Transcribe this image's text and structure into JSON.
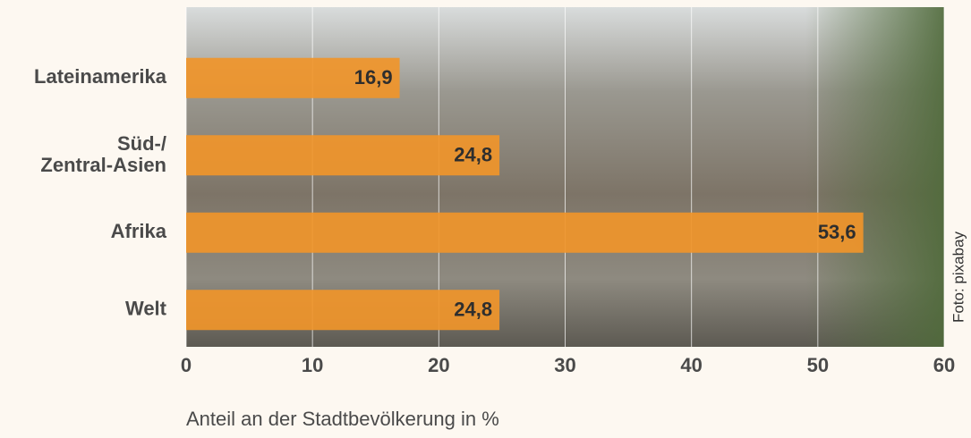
{
  "chart_data": {
    "type": "bar",
    "orientation": "horizontal",
    "categories": [
      "Lateinamerika",
      "Süd-/\nZentral-Asien",
      "Afrika",
      "Welt"
    ],
    "values": [
      16.9,
      24.8,
      53.6,
      24.8
    ],
    "value_labels": [
      "16,9",
      "24,8",
      "53,6",
      "24,8"
    ],
    "color": "#f0952a",
    "xlim": [
      0,
      60
    ],
    "xticks": [
      0,
      10,
      20,
      30,
      40,
      50,
      60
    ],
    "grid": true,
    "xlabel": "Anteil an der Stadtbevölkerung in %",
    "credit": "Foto: pixabay"
  }
}
